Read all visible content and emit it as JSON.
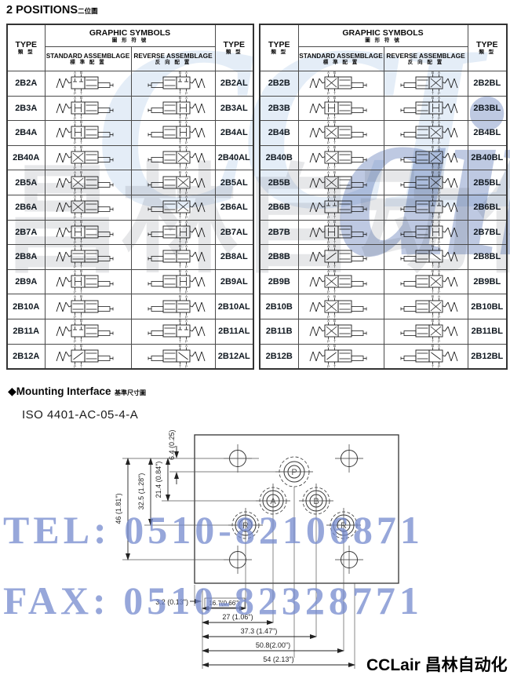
{
  "page": {
    "heading_en": "2 POSITIONS",
    "heading_zh": "二位圖"
  },
  "table_header": {
    "type_en": "TYPE",
    "type_zh": "類 型",
    "graphic_en": "GRAPHIC SYMBOLS",
    "graphic_zh": "圖 形 符 號",
    "standard_en": "STANDARD ASSEMBLAGE",
    "standard_zh": "標 準 配 置",
    "reverse_en": "REVERSE ASSEMBLAGE",
    "reverse_zh": "反 向 配 置"
  },
  "left_table": {
    "rows": [
      {
        "std": "2B2A",
        "rev": "2B2AL",
        "sym": "T"
      },
      {
        "std": "2B3A",
        "rev": "2B3AL",
        "sym": "H"
      },
      {
        "std": "2B4A",
        "rev": "2B4AL",
        "sym": "H"
      },
      {
        "std": "2B40A",
        "rev": "2B40AL",
        "sym": "X"
      },
      {
        "std": "2B5A",
        "rev": "2B5AL",
        "sym": "X"
      },
      {
        "std": "2B6A",
        "rev": "2B6AL",
        "sym": "X"
      },
      {
        "std": "2B7A",
        "rev": "2B7AL",
        "sym": "H"
      },
      {
        "std": "2B8A",
        "rev": "2B8AL",
        "sym": "="
      },
      {
        "std": "2B9A",
        "rev": "2B9AL",
        "sym": "H"
      },
      {
        "std": "2B10A",
        "rev": "2B10AL",
        "sym": "="
      },
      {
        "std": "2B11A",
        "rev": "2B11AL",
        "sym": "T"
      },
      {
        "std": "2B12A",
        "rev": "2B12AL",
        "sym": "/"
      }
    ]
  },
  "right_table": {
    "rows": [
      {
        "std": "2B2B",
        "rev": "2B2BL",
        "sym": "X"
      },
      {
        "std": "2B3B",
        "rev": "2B3BL",
        "sym": "H"
      },
      {
        "std": "2B4B",
        "rev": "2B4BL",
        "sym": "X"
      },
      {
        "std": "2B40B",
        "rev": "2B40BL",
        "sym": "X"
      },
      {
        "std": "2B5B",
        "rev": "2B5BL",
        "sym": "X"
      },
      {
        "std": "2B6B",
        "rev": "2B6BL",
        "sym": "T"
      },
      {
        "std": "2B7B",
        "rev": "2B7BL",
        "sym": "H"
      },
      {
        "std": "2B8B",
        "rev": "2B8BL",
        "sym": "/"
      },
      {
        "std": "2B9B",
        "rev": "2B9BL",
        "sym": "X"
      },
      {
        "std": "2B10B",
        "rev": "2B10BL",
        "sym": "X"
      },
      {
        "std": "2B11B",
        "rev": "2B11BL",
        "sym": "X"
      },
      {
        "std": "2B12B",
        "rev": "2B12BL",
        "sym": "/"
      }
    ]
  },
  "mounting": {
    "heading_diamond": "◆",
    "heading_en": "Mounting Interface",
    "heading_zh": "基準尺寸圖",
    "iso": "ISO 4401-AC-05-4-A",
    "ports": [
      "P",
      "A",
      "B",
      "R",
      "R"
    ],
    "dims_left": [
      "6.4 (0.25)",
      "21.4 (0.84\")",
      "32.5 (1.28\")",
      "46 (1.81\")"
    ],
    "dims_bottom": [
      "3.2 (0.13\")",
      "16.7(0.66\")",
      "27 (1.06\")",
      "37.3 (1.47\")",
      "50.8(2.00\")",
      "54 (2.13\")"
    ]
  },
  "watermark": {
    "logo_part1": "CCL",
    "logo_part2": "air",
    "cn": "昌林自动化",
    "tel": "TEL: 0510-82106871",
    "fax": "FAX: 0510-82328771",
    "blue": "#7489cd"
  },
  "brand": "CCLair 昌林自动化"
}
